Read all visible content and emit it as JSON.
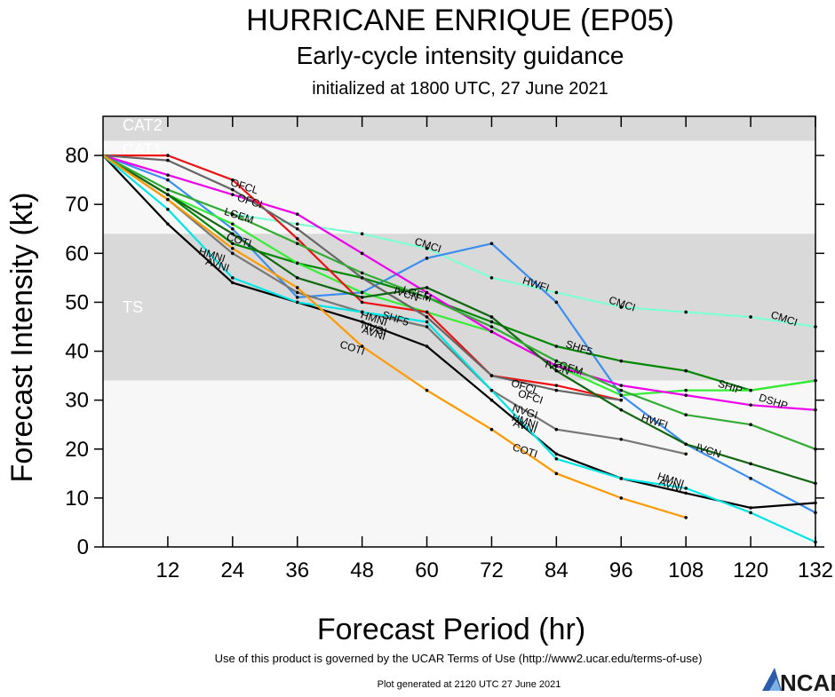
{
  "header": {
    "title": "HURRICANE ENRIQUE (EP05)",
    "subtitle": "Early-cycle intensity guidance",
    "initialized": "initialized at 1800 UTC, 27 June 2021"
  },
  "footer": {
    "terms": "Use of this product is governed by the UCAR Terms of Use (http://www2.ucar.edu/terms-of-use)",
    "generated": "Plot generated at 2120 UTC   27 June 2021",
    "logo": "NCAR"
  },
  "chart_data": {
    "type": "line",
    "xlabel": "Forecast Period (hr)",
    "ylabel": "Forecast Intensity (kt)",
    "xlim": [
      0,
      132
    ],
    "ylim": [
      0,
      88
    ],
    "xticks": [
      12,
      24,
      36,
      48,
      60,
      72,
      84,
      96,
      108,
      120,
      132
    ],
    "yticks": [
      0,
      10,
      20,
      30,
      40,
      50,
      60,
      70,
      80
    ],
    "bands": [
      {
        "label": "CAT2",
        "y0": 83,
        "y1": 96,
        "color": "#d9d9d9"
      },
      {
        "label": "CAT1",
        "y0": 64,
        "y1": 83,
        "color": "#f7f7f7"
      },
      {
        "label": "TS",
        "y0": 34,
        "y1": 64,
        "color": "#d9d9d9"
      },
      {
        "label": "",
        "y0": 0,
        "y1": 34,
        "color": "#f7f7f7"
      }
    ],
    "series": [
      {
        "name": "CMCI",
        "color": "#7fffd4",
        "x": [
          0,
          12,
          24,
          36,
          48,
          60,
          72,
          84,
          96,
          108,
          120,
          132
        ],
        "values": [
          80,
          73,
          68,
          66,
          64,
          61,
          55,
          52,
          49,
          48,
          47,
          45
        ],
        "labels": [
          {
            "x": 60,
            "y": 61
          },
          {
            "x": 96,
            "y": 49
          },
          {
            "x": 126,
            "y": 46
          }
        ]
      },
      {
        "name": "HWFI",
        "color": "#3a8ef0",
        "x": [
          0,
          12,
          24,
          36,
          48,
          60,
          72,
          84,
          96,
          108,
          120,
          132
        ],
        "values": [
          80,
          75,
          65,
          51,
          52,
          59,
          62,
          50,
          31,
          21,
          14,
          7
        ],
        "labels": [
          {
            "x": 80,
            "y": 53
          },
          {
            "x": 102,
            "y": 25
          }
        ]
      },
      {
        "name": "SHF5",
        "color": "#008800",
        "x": [
          0,
          12,
          24,
          36,
          48,
          60,
          72,
          84,
          96,
          108,
          120,
          132
        ],
        "values": [
          80,
          72,
          62,
          58,
          55,
          51,
          46,
          41,
          38,
          36,
          32,
          34
        ],
        "labels": [
          {
            "x": 54,
            "y": 46
          },
          {
            "x": 88,
            "y": 40
          }
        ]
      },
      {
        "name": "SHIP",
        "color": "#33ee33",
        "x": [
          0,
          12,
          24,
          36,
          48,
          60,
          72,
          84,
          96,
          108,
          120,
          132
        ],
        "values": [
          80,
          72,
          66,
          58,
          52,
          48,
          44,
          37,
          31,
          32,
          32,
          34
        ],
        "labels": [
          {
            "x": 116,
            "y": 32
          }
        ]
      },
      {
        "name": "DSHP",
        "color": "#ee00ee",
        "x": [
          0,
          12,
          24,
          36,
          48,
          60,
          72,
          84,
          96,
          108,
          120,
          132
        ],
        "values": [
          80,
          76,
          72,
          68,
          60,
          52,
          44,
          37,
          33,
          31,
          29,
          28
        ],
        "labels": [
          {
            "x": 124,
            "y": 29
          }
        ]
      },
      {
        "name": "OFCL",
        "color": "#ee1111",
        "x": [
          0,
          12,
          24,
          36,
          48,
          60,
          72,
          84,
          96
        ],
        "values": [
          80,
          80,
          75,
          63,
          50,
          48,
          35,
          33,
          30
        ],
        "labels": [
          {
            "x": 26,
            "y": 73
          },
          {
            "x": 78,
            "y": 32
          }
        ]
      },
      {
        "name": "OFCI",
        "color": "#666666",
        "x": [
          0,
          12,
          24,
          36,
          48,
          60,
          72,
          84,
          96
        ],
        "values": [
          80,
          79,
          73,
          65,
          55,
          47,
          35,
          32,
          30
        ],
        "labels": [
          {
            "x": 27,
            "y": 70
          },
          {
            "x": 79,
            "y": 30
          }
        ]
      },
      {
        "name": "IVCN",
        "color": "#116611",
        "x": [
          0,
          12,
          24,
          36,
          48,
          60,
          72,
          84,
          96,
          108,
          120,
          132
        ],
        "values": [
          80,
          72,
          64,
          55,
          51,
          53,
          47,
          36,
          28,
          21,
          17,
          13
        ],
        "labels": [
          {
            "x": 56,
            "y": 51
          },
          {
            "x": 84,
            "y": 36
          },
          {
            "x": 112,
            "y": 19
          }
        ]
      },
      {
        "name": "LGEM",
        "color": "#33aa33",
        "x": [
          0,
          12,
          24,
          36,
          48,
          60,
          72,
          84,
          96,
          108,
          120,
          132
        ],
        "values": [
          80,
          73,
          68,
          62,
          56,
          51,
          45,
          38,
          32,
          27,
          25,
          20
        ],
        "labels": [
          {
            "x": 25,
            "y": 67
          },
          {
            "x": 58,
            "y": 51
          },
          {
            "x": 86,
            "y": 36
          }
        ]
      },
      {
        "name": "NVGI",
        "color": "#777777",
        "x": [
          0,
          12,
          24,
          36,
          48,
          60,
          72,
          84,
          96,
          108
        ],
        "values": [
          80,
          71,
          60,
          52,
          48,
          45,
          32,
          24,
          22,
          19
        ],
        "labels": [
          {
            "x": 50,
            "y": 44
          },
          {
            "x": 78,
            "y": 27
          }
        ]
      },
      {
        "name": "AVNI",
        "color": "#000000",
        "x": [
          0,
          12,
          24,
          36,
          48,
          60,
          72,
          84,
          96,
          108,
          120,
          132
        ],
        "values": [
          80,
          66,
          54,
          50,
          46,
          41,
          30,
          19,
          14,
          11,
          8,
          9
        ],
        "labels": [
          {
            "x": 21,
            "y": 57
          },
          {
            "x": 50,
            "y": 43
          },
          {
            "x": 78,
            "y": 24
          },
          {
            "x": 105,
            "y": 12
          }
        ]
      },
      {
        "name": "HMNI",
        "color": "#00e5e5",
        "x": [
          0,
          12,
          24,
          36,
          48,
          60,
          72,
          84,
          96,
          108,
          120,
          132
        ],
        "values": [
          80,
          69,
          55,
          50,
          48,
          46,
          32,
          18,
          14,
          12,
          7,
          1
        ],
        "labels": [
          {
            "x": 20,
            "y": 59
          },
          {
            "x": 50,
            "y": 46
          },
          {
            "x": 78,
            "y": 25
          },
          {
            "x": 105,
            "y": 13
          }
        ]
      },
      {
        "name": "COTI",
        "color": "#ff9900",
        "x": [
          0,
          12,
          24,
          36,
          48,
          60,
          72,
          84,
          96,
          108
        ],
        "values": [
          80,
          71,
          61,
          53,
          41,
          32,
          24,
          15,
          10,
          6
        ],
        "labels": [
          {
            "x": 25,
            "y": 62
          },
          {
            "x": 46,
            "y": 40
          },
          {
            "x": 78,
            "y": 19
          }
        ]
      }
    ]
  }
}
